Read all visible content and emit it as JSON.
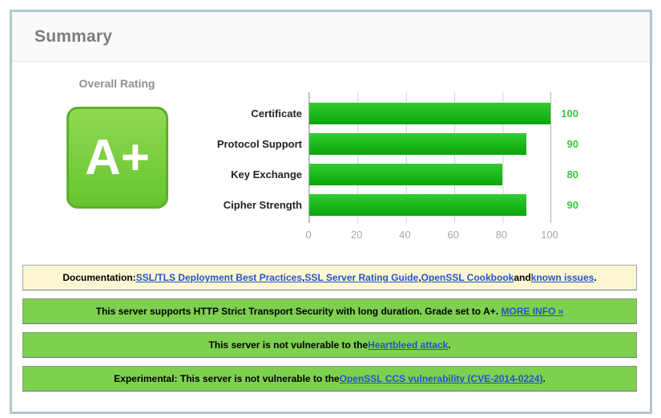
{
  "header": {
    "title": "Summary"
  },
  "overall": {
    "label": "Overall Rating",
    "grade": "A+"
  },
  "chart_data": {
    "type": "bar",
    "orientation": "horizontal",
    "categories": [
      "Certificate",
      "Protocol Support",
      "Key Exchange",
      "Cipher Strength"
    ],
    "values": [
      100,
      90,
      80,
      90
    ],
    "xlim": [
      0,
      100
    ],
    "xticks": [
      0,
      20,
      40,
      60,
      80,
      100
    ],
    "grid": true,
    "legend": "none",
    "bar_color": "#22bb22",
    "value_label_color": "#3fc43f"
  },
  "banners": [
    {
      "type": "documentation",
      "style": "yellow",
      "segments": [
        {
          "text": "Documentation: "
        },
        {
          "text": "SSL/TLS Deployment Best Practices",
          "link": true
        },
        {
          "text": ", "
        },
        {
          "text": "SSL Server Rating Guide",
          "link": true
        },
        {
          "text": ", "
        },
        {
          "text": "OpenSSL Cookbook",
          "link": true
        },
        {
          "text": " and "
        },
        {
          "text": "known issues",
          "link": true
        },
        {
          "text": "."
        }
      ]
    },
    {
      "type": "hsts",
      "style": "green",
      "segments": [
        {
          "text": "This server supports HTTP Strict Transport Security with long duration. Grade set to A+.  "
        },
        {
          "text": "MORE INFO »",
          "link": true
        }
      ]
    },
    {
      "type": "heartbleed",
      "style": "green",
      "segments": [
        {
          "text": "This server is not vulnerable to the "
        },
        {
          "text": "Heartbleed attack",
          "link": true
        },
        {
          "text": "."
        }
      ]
    },
    {
      "type": "ccs-injection",
      "style": "green",
      "segments": [
        {
          "text": "Experimental: This server is not vulnerable to the "
        },
        {
          "text": "OpenSSL CCS vulnerability (CVE-2014-0224)",
          "link": true
        },
        {
          "text": "."
        }
      ]
    }
  ],
  "colors": {
    "panel_border": "#b2c6cd",
    "grade_green_top": "#8fd952",
    "grade_green_bottom": "#66c52e",
    "grade_border": "#5cb02c",
    "bar_green_top": "#33cc33",
    "bar_green_bottom": "#0aa50a",
    "value_green": "#3fc43f",
    "banner_green": "#7ed04f",
    "banner_yellow": "#fcf7d2",
    "link_blue": "#2353cc"
  }
}
